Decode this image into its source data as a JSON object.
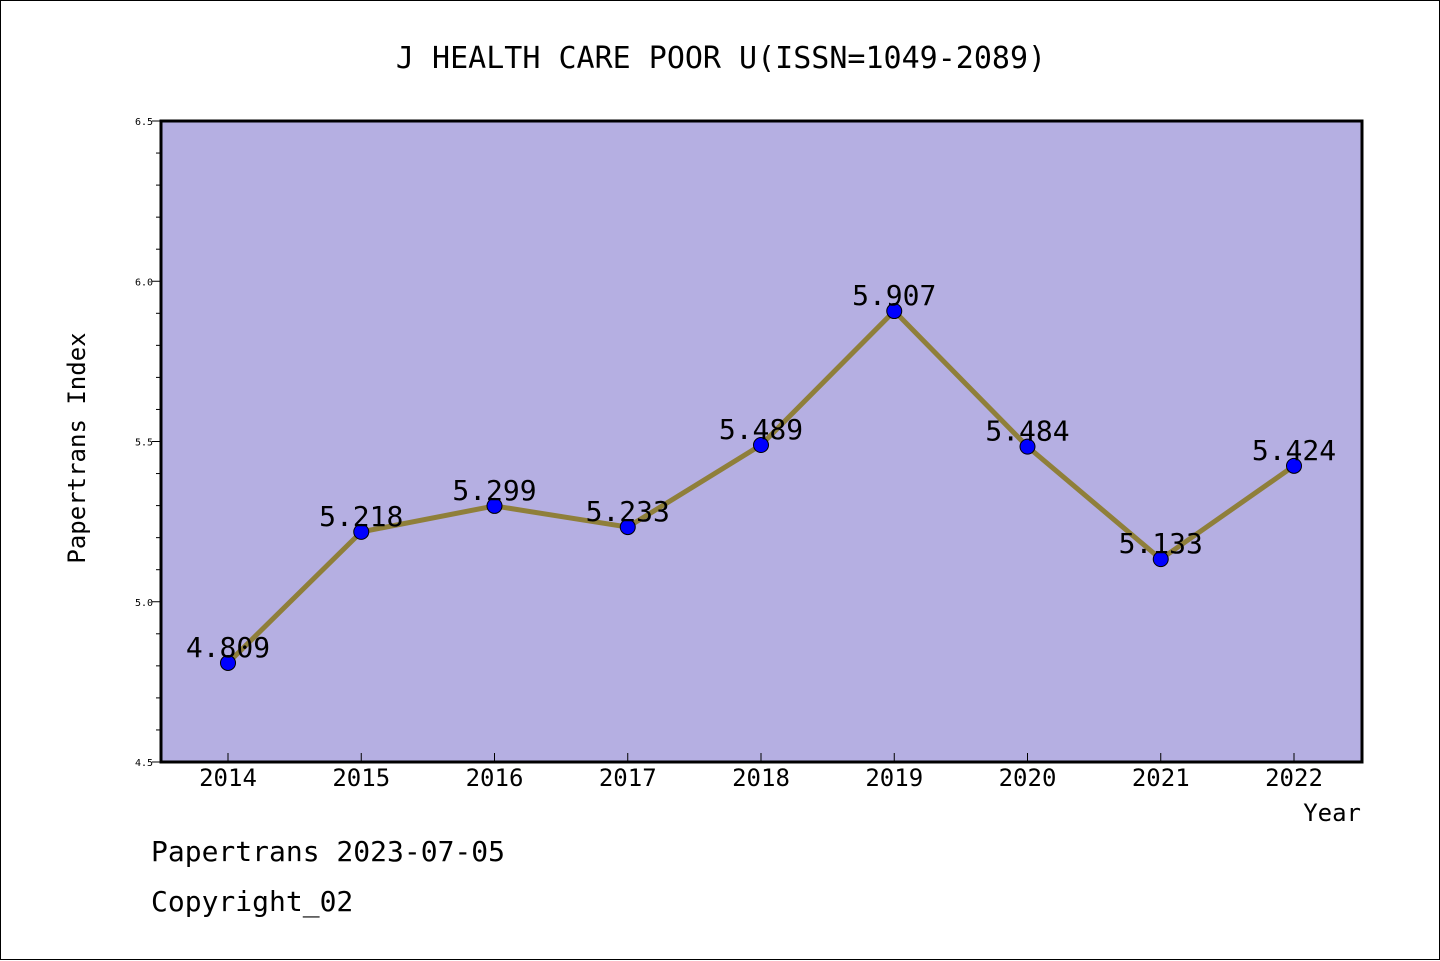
{
  "chart_data": {
    "type": "line",
    "title": "J HEALTH CARE POOR U(ISSN=1049-2089)",
    "xlabel": "Year",
    "ylabel": "Papertrans Index",
    "categories": [
      "2014",
      "2015",
      "2016",
      "2017",
      "2018",
      "2019",
      "2020",
      "2021",
      "2022"
    ],
    "values": [
      4.809,
      5.218,
      5.299,
      5.233,
      5.489,
      5.907,
      5.484,
      5.133,
      5.424
    ],
    "value_labels": [
      "4.809",
      "5.218",
      "5.299",
      "5.233",
      "5.489",
      "5.907",
      "5.484",
      "5.133",
      "5.424"
    ],
    "ylim": [
      4.5,
      6.5
    ],
    "yticks": [
      "4.5",
      "5.0",
      "5.5",
      "6.0",
      "6.5"
    ],
    "grid": false,
    "colors": {
      "plot_background": "#b5afe2",
      "line": "#8f7f3a",
      "marker": "#0000ff"
    }
  },
  "footer": {
    "line1": "Papertrans 2023-07-05",
    "line2": "Copyright_02"
  }
}
